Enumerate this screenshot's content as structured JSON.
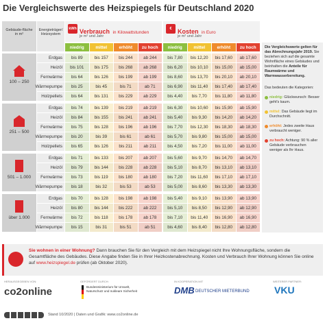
{
  "header": {
    "title": "Die Vergleichswerte des Heizspiegels für Deutschland 2020"
  },
  "table": {
    "area_header": "Gebäude-fläche in m²",
    "energy_header": "Energieträger/ Heizsystem",
    "consumption": {
      "icon": "kWh",
      "title": "Verbrauch",
      "unit": "in Kilowattstunden",
      "sub": "je m² und Jahr"
    },
    "cost": {
      "icon": "€",
      "title": "Kosten",
      "unit": "in Euro",
      "sub": "je m² und Jahr"
    },
    "categories": [
      "niedrig",
      "mittel",
      "erhöht",
      "zu hoch"
    ],
    "groups": [
      {
        "area": "100 – 250",
        "rows": [
          {
            "label": "Erdgas",
            "consumption": [
              "bis 89",
              "bis 157",
              "bis 244",
              "ab 244"
            ],
            "cost": [
              "bis 7,80",
              "bis 12,20",
              "bis 17,60",
              "ab 17,60"
            ]
          },
          {
            "label": "Heizöl",
            "consumption": [
              "bis 101",
              "bis 175",
              "bis 268",
              "ab 268"
            ],
            "cost": [
              "bis 6,20",
              "bis 10,10",
              "bis 15,00",
              "ab 15,00"
            ]
          },
          {
            "label": "Fernwärme",
            "consumption": [
              "bis 64",
              "bis 126",
              "bis 199",
              "ab 199"
            ],
            "cost": [
              "bis 8,60",
              "bis 13,70",
              "bis 20,10",
              "ab 20,10"
            ]
          },
          {
            "label": "Wärmepumpe",
            "consumption": [
              "bis 25",
              "bis 45",
              "bis 71",
              "ab 71"
            ],
            "cost": [
              "bis 6,90",
              "bis 11,40",
              "bis 17,40",
              "ab 17,40"
            ]
          },
          {
            "label": "Holzpellets",
            "consumption": [
              "bis 64",
              "bis 131",
              "bis 229",
              "ab 229"
            ],
            "cost": [
              "bis 4,40",
              "bis 7,70",
              "bis 11,80",
              "ab 11,80"
            ]
          }
        ]
      },
      {
        "area": "251 – 500",
        "rows": [
          {
            "label": "Erdgas",
            "consumption": [
              "bis 74",
              "bis 139",
              "bis 219",
              "ab 219"
            ],
            "cost": [
              "bis 6,30",
              "bis 10,60",
              "bis 15,90",
              "ab 15,90"
            ]
          },
          {
            "label": "Heizöl",
            "consumption": [
              "bis 84",
              "bis 155",
              "bis 241",
              "ab 241"
            ],
            "cost": [
              "bis 5,40",
              "bis 9,30",
              "bis 14,20",
              "ab 14,20"
            ]
          },
          {
            "label": "Fernwärme",
            "consumption": [
              "bis 75",
              "bis 128",
              "bis 196",
              "ab 196"
            ],
            "cost": [
              "bis 7,70",
              "bis 12,30",
              "bis 18,30",
              "ab 18,30"
            ]
          },
          {
            "label": "Wärmepumpe",
            "consumption": [
              "bis 20",
              "bis 39",
              "bis 61",
              "ab 61"
            ],
            "cost": [
              "bis 5,70",
              "bis 9,80",
              "bis 15,00",
              "ab 15,00"
            ]
          },
          {
            "label": "Holzpellets",
            "consumption": [
              "bis 65",
              "bis 126",
              "bis 211",
              "ab 211"
            ],
            "cost": [
              "bis 4,50",
              "bis 7,20",
              "bis 11,00",
              "ab 11,00"
            ]
          }
        ]
      },
      {
        "area": "501 – 1.000",
        "rows": [
          {
            "label": "Erdgas",
            "consumption": [
              "bis 71",
              "bis 133",
              "bis 207",
              "ab 207"
            ],
            "cost": [
              "bis 5,60",
              "bis 9,70",
              "bis 14,70",
              "ab 14,70"
            ]
          },
          {
            "label": "Heizöl",
            "consumption": [
              "bis 79",
              "bis 144",
              "bis 228",
              "ab 228"
            ],
            "cost": [
              "bis 5,10",
              "bis 8,70",
              "bis 13,10",
              "ab 13,10"
            ]
          },
          {
            "label": "Fernwärme",
            "consumption": [
              "bis 73",
              "bis 119",
              "bis 180",
              "ab 180"
            ],
            "cost": [
              "bis 7,20",
              "bis 11,60",
              "bis 17,10",
              "ab 17,10"
            ]
          },
          {
            "label": "Wärmepumpe",
            "consumption": [
              "bis 18",
              "bis 32",
              "bis 53",
              "ab 53"
            ],
            "cost": [
              "bis 5,00",
              "bis 8,60",
              "bis 13,30",
              "ab 13,30"
            ]
          }
        ]
      },
      {
        "area": "über 1.000",
        "rows": [
          {
            "label": "Erdgas",
            "consumption": [
              "bis 70",
              "bis 128",
              "bis 198",
              "ab 198"
            ],
            "cost": [
              "bis 5,40",
              "bis 9,10",
              "bis 13,90",
              "ab 13,90"
            ]
          },
          {
            "label": "Heizöl",
            "consumption": [
              "bis 80",
              "bis 144",
              "bis 222",
              "ab 222"
            ],
            "cost": [
              "bis 5,10",
              "bis 8,50",
              "bis 12,90",
              "ab 12,90"
            ]
          },
          {
            "label": "Fernwärme",
            "consumption": [
              "bis 72",
              "bis 118",
              "bis 178",
              "ab 178"
            ],
            "cost": [
              "bis 7,10",
              "bis 11,40",
              "bis 16,90",
              "ab 16,90"
            ]
          },
          {
            "label": "Wärmepumpe",
            "consumption": [
              "bis 15",
              "bis 31",
              "bis 51",
              "ab 51"
            ],
            "cost": [
              "bis 4,60",
              "bis 8,40",
              "bis 12,80",
              "ab 12,80"
            ]
          }
        ]
      }
    ]
  },
  "sidebar": {
    "intro": [
      "Die Vergleichswerte gelten für das Abrechnungsjahr 2019.",
      "Sie beziehen sich auf die gesamte Wohnfläche eines Gebäudes und beinhalten die",
      "Anteile für Raumwärme und Warmwasserbereitung."
    ],
    "legend_title": "Das bedeuten die Kategorien:",
    "legend": [
      {
        "term": "niedrig:",
        "text": "Glückwunsch: Besser geht's kaum."
      },
      {
        "term": "mittel:",
        "text": "Das Gebäude liegt im Durchschnitt."
      },
      {
        "term": "erhöht:",
        "text": "Jedes zweite Haus verbraucht weniger."
      },
      {
        "term": "zu hoch:",
        "text": "Achtung: 90 % aller Gebäude verbrauchen weniger als Ihr Haus."
      }
    ]
  },
  "notice": {
    "lead": "Sie wohnen in einer Wohnung?",
    "text": "Dann brauchen Sie für den Vergleich mit dem Heizspiegel nicht Ihre Wohnungsfläche, sondern die Gesamtfläche des Gebäudes. Diese Angabe finden Sie in Ihrer Heizkostenabrechnung. Kosten und Verbrauch Ihrer Wohnung können Sie online auf",
    "link": "www.heizspiegel.de",
    "tail": "prüfen (ab Oktober 2020)."
  },
  "footer": {
    "publisher_label": "HERAUSGEGEBEN VON:",
    "publisher": "co2online",
    "funder_label": "GEFÖRDERT DURCH:",
    "funder": "Bundesministerium für Umwelt, Naturschutz und nukleare Sicherheit",
    "coop_label": "IN KOOPERATION MIT",
    "coop_short": "DMB",
    "coop": "DEUTSCHER MIETERBUND",
    "partner_label": "WEITERER PARTNER:",
    "partner": "VKU",
    "credits": "Stand 10/2020 | Daten und Grafik: www.co2online.de"
  }
}
